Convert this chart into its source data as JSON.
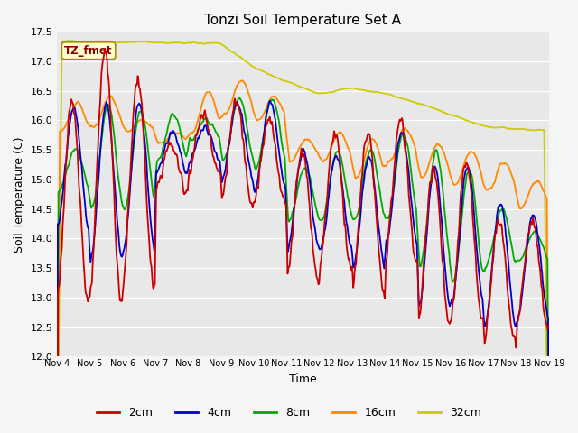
{
  "title": "Tonzi Soil Temperature Set A",
  "xlabel": "Time",
  "ylabel": "Soil Temperature (C)",
  "ylim": [
    12.0,
    17.5
  ],
  "yticks": [
    12.0,
    12.5,
    13.0,
    13.5,
    14.0,
    14.5,
    15.0,
    15.5,
    16.0,
    16.5,
    17.0,
    17.5
  ],
  "xtick_labels": [
    "Nov 4",
    "Nov 5",
    "Nov 6",
    "Nov 7",
    "Nov 8",
    "Nov 9",
    "Nov 10",
    "Nov 11",
    "Nov 12",
    "Nov 13",
    "Nov 14",
    "Nov 15",
    "Nov 16",
    "Nov 17",
    "Nov 18",
    "Nov 19"
  ],
  "colors": {
    "2cm": "#cc0000",
    "4cm": "#0000cc",
    "8cm": "#00aa00",
    "16cm": "#ff8800",
    "32cm": "#cccc00"
  },
  "legend_label": "TZ_fmet",
  "fig_bg": "#f5f5f5",
  "plot_bg": "#e8e8e8"
}
